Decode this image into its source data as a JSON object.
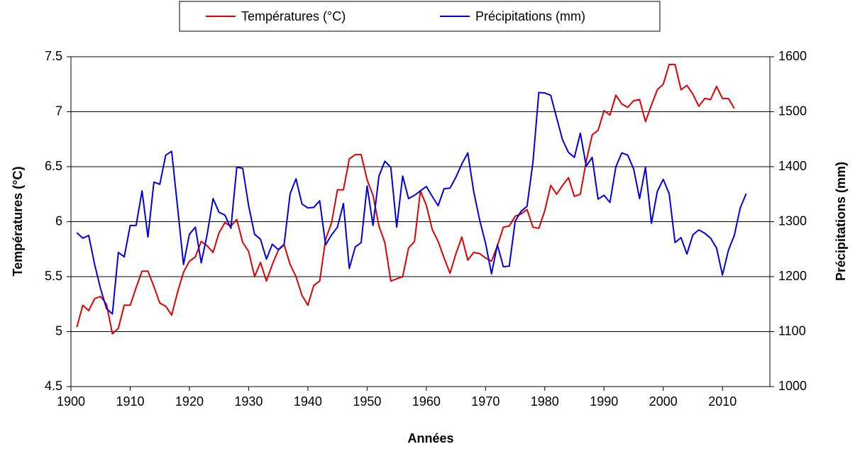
{
  "chart_data": {
    "type": "line",
    "x_label": "Années",
    "y_label": "Températures (°C)",
    "y2_label": "Précipitations (mm)",
    "x": [
      1901,
      1902,
      1903,
      1904,
      1905,
      1906,
      1907,
      1908,
      1909,
      1910,
      1911,
      1912,
      1913,
      1914,
      1915,
      1916,
      1917,
      1918,
      1919,
      1920,
      1921,
      1922,
      1923,
      1924,
      1925,
      1926,
      1927,
      1928,
      1929,
      1930,
      1931,
      1932,
      1933,
      1934,
      1935,
      1936,
      1937,
      1938,
      1939,
      1940,
      1941,
      1942,
      1943,
      1944,
      1945,
      1946,
      1947,
      1948,
      1949,
      1950,
      1951,
      1952,
      1953,
      1954,
      1955,
      1956,
      1957,
      1958,
      1959,
      1960,
      1961,
      1962,
      1963,
      1964,
      1965,
      1966,
      1967,
      1968,
      1969,
      1970,
      1971,
      1972,
      1973,
      1974,
      1975,
      1976,
      1977,
      1978,
      1979,
      1980,
      1981,
      1982,
      1983,
      1984,
      1985,
      1986,
      1987,
      1988,
      1989,
      1990,
      1991,
      1992,
      1993,
      1994,
      1995,
      1996,
      1997,
      1998,
      1999,
      2000,
      2001,
      2002,
      2003,
      2004,
      2005,
      2006,
      2007,
      2008,
      2009,
      2010,
      2011,
      2012,
      2013,
      2014
    ],
    "series": [
      {
        "name": "Températures (°C)",
        "color": "#e00000",
        "values": [
          5.04,
          5.24,
          5.19,
          5.3,
          5.32,
          5.25,
          4.98,
          5.03,
          5.24,
          5.24,
          5.4,
          5.55,
          5.55,
          5.41,
          5.26,
          5.23,
          5.15,
          5.36,
          5.54,
          5.64,
          5.68,
          5.82,
          5.78,
          5.72,
          5.9,
          5.99,
          5.96,
          6.02,
          5.81,
          5.73,
          5.5,
          5.63,
          5.46,
          5.61,
          5.74,
          5.79,
          5.61,
          5.5,
          5.33,
          5.24,
          5.42,
          5.46,
          5.84,
          5.99,
          6.29,
          6.29,
          6.57,
          6.61,
          6.61,
          6.38,
          6.24,
          5.96,
          5.81,
          5.46,
          5.48,
          5.5,
          5.76,
          5.82,
          6.28,
          6.15,
          5.93,
          5.82,
          5.67,
          5.53,
          5.71,
          5.86,
          5.65,
          5.72,
          5.71,
          5.67,
          5.64,
          5.78,
          5.95,
          5.96,
          6.05,
          6.07,
          6.11,
          5.95,
          5.94,
          6.1,
          6.33,
          6.25,
          6.33,
          6.4,
          6.23,
          6.25,
          6.55,
          6.79,
          6.83,
          7.01,
          6.97,
          7.15,
          7.07,
          7.04,
          7.1,
          7.11,
          6.91,
          7.06,
          7.2,
          7.25,
          7.43,
          7.43,
          7.2,
          7.24,
          7.16,
          7.05,
          7.12,
          7.11,
          7.23,
          7.12,
          7.12,
          7.03,
          null,
          null
        ]
      },
      {
        "name": "Précipitations (mm)",
        "color": "#0000e0",
        "axis": "y2",
        "values": [
          1280,
          1270,
          1275,
          1222,
          1178,
          1142,
          1132,
          1244,
          1236,
          1293,
          1293,
          1356,
          1272,
          1372,
          1368,
          1421,
          1428,
          1326,
          1222,
          1277,
          1290,
          1225,
          1277,
          1342,
          1317,
          1312,
          1288,
          1399,
          1397,
          1329,
          1277,
          1268,
          1232,
          1259,
          1249,
          1259,
          1351,
          1378,
          1332,
          1325,
          1326,
          1338,
          1258,
          1276,
          1290,
          1333,
          1215,
          1254,
          1262,
          1365,
          1293,
          1383,
          1410,
          1399,
          1290,
          1383,
          1342,
          1348,
          1356,
          1364,
          1346,
          1329,
          1360,
          1361,
          1381,
          1405,
          1425,
          1355,
          1303,
          1261,
          1205,
          1258,
          1218,
          1219,
          1301,
          1319,
          1328,
          1408,
          1535,
          1534,
          1530,
          1489,
          1449,
          1426,
          1417,
          1461,
          1401,
          1417,
          1341,
          1348,
          1335,
          1400,
          1425,
          1421,
          1396,
          1342,
          1399,
          1297,
          1355,
          1377,
          1351,
          1262,
          1271,
          1241,
          1276,
          1285,
          1279,
          1270,
          1252,
          1203,
          1248,
          1275,
          1325,
          1351
        ]
      }
    ],
    "xlim": [
      1900,
      2018
    ],
    "xticks": [
      1900,
      1910,
      1920,
      1930,
      1940,
      1950,
      1960,
      1970,
      1980,
      1990,
      2000,
      2010
    ],
    "ylim": [
      4.5,
      7.5
    ],
    "yticks": [
      4.5,
      5,
      5.5,
      6,
      6.5,
      7,
      7.5
    ],
    "y2lim": [
      1000,
      1600
    ],
    "y2ticks": [
      1000,
      1100,
      1200,
      1300,
      1400,
      1500,
      1600
    ],
    "grid": true,
    "legend": "top"
  }
}
